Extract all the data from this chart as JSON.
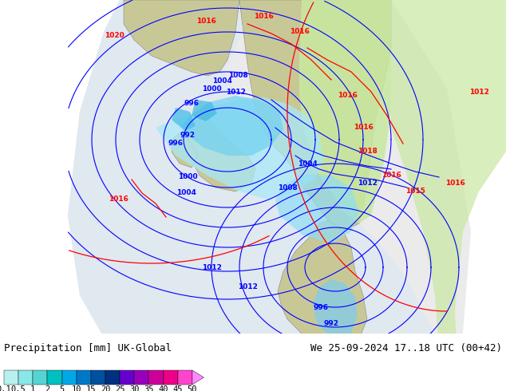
{
  "title_left": "Precipitation [mm] UK-Global",
  "title_right": "We 25-09-2024 17..18 UTC (00+42)",
  "colorbar_values": [
    0.1,
    0.5,
    1,
    2,
    5,
    10,
    15,
    20,
    25,
    30,
    35,
    40,
    45,
    50
  ],
  "colorbar_colors": [
    "#b8f0f0",
    "#88e8e8",
    "#55d4d4",
    "#00c0c0",
    "#00a8e8",
    "#0078c8",
    "#0050a0",
    "#003080",
    "#6600cc",
    "#9900bb",
    "#cc0099",
    "#ee0088",
    "#ff44cc",
    "#ff88ff"
  ],
  "bg_color": "#ffffff",
  "land_color": "#c8c896",
  "sea_color": "#a0b8c8",
  "model_domain_color": "#e8e8e8",
  "precip_light_green": "#c8e8a0",
  "precip_light_cyan": "#a0e8f8",
  "precip_blue1": "#80d8f0",
  "precip_blue2": "#50b8e8",
  "font_family": "monospace",
  "title_fontsize": 9,
  "colorbar_label_fontsize": 7.5,
  "fig_width": 6.34,
  "fig_height": 4.9,
  "dpi": 100
}
